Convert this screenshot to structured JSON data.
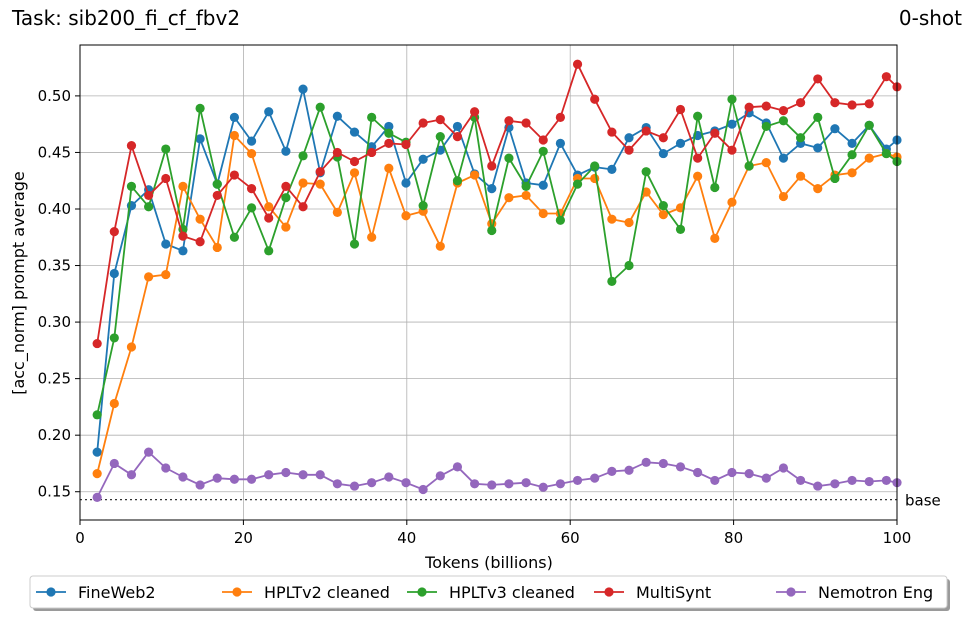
{
  "chart_data": {
    "type": "line",
    "title_left": "Task: sib200_fi_cf_fbv2",
    "title_right": "0-shot",
    "xlabel": "Tokens (billions)",
    "ylabel": "[acc_norm] prompt average",
    "xlim": [
      0,
      100
    ],
    "ylim": [
      0.125,
      0.545
    ],
    "xticks": [
      0,
      20,
      40,
      60,
      80,
      100
    ],
    "yticks": [
      0.15,
      0.2,
      0.25,
      0.3,
      0.35,
      0.4,
      0.45,
      0.5
    ],
    "grid": true,
    "legend_position": "bottom-center",
    "baseline": {
      "label": "base",
      "value": 0.143
    },
    "x": [
      2.1,
      4.2,
      6.3,
      8.4,
      10.5,
      12.6,
      14.7,
      16.8,
      18.9,
      21.0,
      23.1,
      25.2,
      27.3,
      29.4,
      31.5,
      33.6,
      35.7,
      37.8,
      39.9,
      42.0,
      44.1,
      46.2,
      48.3,
      50.4,
      52.5,
      54.6,
      56.7,
      58.8,
      60.9,
      63.0,
      65.1,
      67.2,
      69.3,
      71.4,
      73.5,
      75.6,
      77.7,
      79.8,
      81.9,
      84.0,
      86.1,
      88.2,
      90.3,
      92.4,
      94.5,
      96.6,
      98.7,
      100.0
    ],
    "series": [
      {
        "name": "FineWeb2",
        "color": "#1f77b4",
        "values": [
          0.185,
          0.343,
          0.403,
          0.417,
          0.369,
          0.363,
          0.462,
          0.422,
          0.481,
          0.46,
          0.486,
          0.451,
          0.506,
          0.432,
          0.482,
          0.468,
          0.455,
          0.473,
          0.423,
          0.444,
          0.452,
          0.473,
          0.431,
          0.418,
          0.472,
          0.423,
          0.421,
          0.458,
          0.43,
          0.437,
          0.435,
          0.463,
          0.472,
          0.449,
          0.458,
          0.465,
          0.469,
          0.475,
          0.485,
          0.476,
          0.445,
          0.458,
          0.454,
          0.471,
          0.458,
          0.474,
          0.453,
          0.461
        ]
      },
      {
        "name": "HPLTv2 cleaned",
        "color": "#ff7f0e",
        "values": [
          0.166,
          0.228,
          0.278,
          0.34,
          0.342,
          0.42,
          0.391,
          0.366,
          0.465,
          0.449,
          0.402,
          0.384,
          0.423,
          0.422,
          0.397,
          0.432,
          0.375,
          0.436,
          0.394,
          0.398,
          0.367,
          0.423,
          0.43,
          0.387,
          0.41,
          0.412,
          0.396,
          0.396,
          0.427,
          0.427,
          0.391,
          0.388,
          0.415,
          0.395,
          0.401,
          0.429,
          0.374,
          0.406,
          0.438,
          0.441,
          0.411,
          0.429,
          0.418,
          0.43,
          0.432,
          0.445,
          0.449,
          0.446
        ]
      },
      {
        "name": "HPLTv3 cleaned",
        "color": "#2ca02c",
        "values": [
          0.218,
          0.286,
          0.42,
          0.402,
          0.453,
          0.382,
          0.489,
          0.422,
          0.375,
          0.401,
          0.363,
          0.41,
          0.447,
          0.49,
          0.446,
          0.369,
          0.481,
          0.467,
          0.459,
          0.403,
          0.464,
          0.425,
          0.481,
          0.381,
          0.445,
          0.42,
          0.451,
          0.39,
          0.422,
          0.438,
          0.336,
          0.35,
          0.433,
          0.403,
          0.382,
          0.482,
          0.419,
          0.497,
          0.438,
          0.473,
          0.478,
          0.463,
          0.481,
          0.427,
          0.448,
          0.474,
          0.449,
          0.442
        ]
      },
      {
        "name": "MultiSynt",
        "color": "#d62728",
        "values": [
          0.281,
          0.38,
          0.456,
          0.412,
          0.427,
          0.376,
          0.371,
          0.412,
          0.43,
          0.418,
          0.392,
          0.42,
          0.402,
          0.433,
          0.45,
          0.442,
          0.45,
          0.458,
          0.457,
          0.476,
          0.479,
          0.464,
          0.486,
          0.438,
          0.478,
          0.476,
          0.461,
          0.481,
          0.528,
          0.497,
          0.468,
          0.452,
          0.469,
          0.463,
          0.488,
          0.445,
          0.467,
          0.452,
          0.49,
          0.491,
          0.487,
          0.494,
          0.515,
          0.494,
          0.492,
          0.493,
          0.517,
          0.508
        ]
      },
      {
        "name": "Nemotron Eng",
        "color": "#9467bd",
        "values": [
          0.145,
          0.175,
          0.165,
          0.185,
          0.171,
          0.163,
          0.156,
          0.162,
          0.161,
          0.161,
          0.165,
          0.167,
          0.165,
          0.165,
          0.157,
          0.155,
          0.158,
          0.163,
          0.158,
          0.152,
          0.164,
          0.172,
          0.157,
          0.156,
          0.157,
          0.158,
          0.154,
          0.157,
          0.16,
          0.162,
          0.168,
          0.169,
          0.176,
          0.175,
          0.172,
          0.167,
          0.16,
          0.167,
          0.166,
          0.162,
          0.171,
          0.16,
          0.155,
          0.157,
          0.16,
          0.159,
          0.16,
          0.158
        ]
      }
    ]
  }
}
